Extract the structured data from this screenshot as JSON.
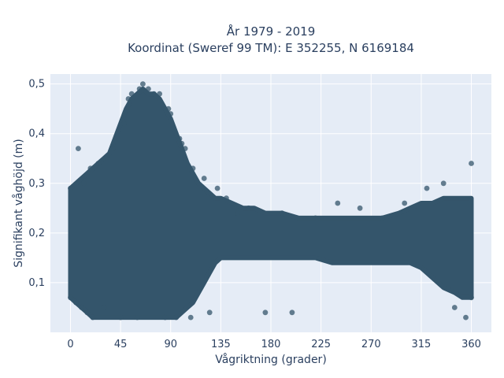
{
  "chart_data": {
    "type": "scatter",
    "title_lines": [
      "År 1979 - 2019",
      "Koordinat (Sweref 99 TM): E 352255, N 6169184"
    ],
    "xlabel": "Vågriktning (grader)",
    "ylabel": "Signifikant våghöjd (m)",
    "xlim": [
      -18,
      378
    ],
    "ylim": [
      0.0,
      0.52
    ],
    "x_ticks": [
      0,
      45,
      90,
      135,
      180,
      225,
      270,
      315,
      360
    ],
    "x_tick_labels": [
      "0",
      "45",
      "90",
      "135",
      "180",
      "225",
      "270",
      "315",
      "360"
    ],
    "y_ticks": [
      0.1,
      0.2,
      0.3,
      0.4,
      0.5
    ],
    "y_tick_labels": [
      "0,1",
      "0,2",
      "0,3",
      "0,4",
      "0,5"
    ],
    "grid": true,
    "marker_color": "#34556b",
    "plot_background": "#e5ecf6",
    "series": [
      {
        "values": [
          [
            0,
            0.07
          ],
          [
            0,
            0.29
          ],
          [
            5,
            0.06
          ],
          [
            7,
            0.37
          ],
          [
            10,
            0.05
          ],
          [
            12,
            0.3
          ],
          [
            15,
            0.04
          ],
          [
            18,
            0.33
          ],
          [
            20,
            0.03
          ],
          [
            25,
            0.34
          ],
          [
            30,
            0.05
          ],
          [
            32,
            0.35
          ],
          [
            38,
            0.37
          ],
          [
            45,
            0.03
          ],
          [
            48,
            0.42
          ],
          [
            52,
            0.47
          ],
          [
            55,
            0.48
          ],
          [
            60,
            0.03
          ],
          [
            62,
            0.49
          ],
          [
            65,
            0.5
          ],
          [
            70,
            0.49
          ],
          [
            75,
            0.48
          ],
          [
            80,
            0.48
          ],
          [
            85,
            0.03
          ],
          [
            88,
            0.45
          ],
          [
            90,
            0.44
          ],
          [
            95,
            0.03
          ],
          [
            98,
            0.39
          ],
          [
            100,
            0.38
          ],
          [
            103,
            0.37
          ],
          [
            108,
            0.03
          ],
          [
            110,
            0.33
          ],
          [
            120,
            0.31
          ],
          [
            125,
            0.04
          ],
          [
            132,
            0.29
          ],
          [
            140,
            0.27
          ],
          [
            150,
            0.24
          ],
          [
            160,
            0.25
          ],
          [
            175,
            0.04
          ],
          [
            190,
            0.24
          ],
          [
            199,
            0.04
          ],
          [
            220,
            0.23
          ],
          [
            240,
            0.26
          ],
          [
            260,
            0.25
          ],
          [
            280,
            0.23
          ],
          [
            300,
            0.26
          ],
          [
            320,
            0.29
          ],
          [
            335,
            0.3
          ],
          [
            345,
            0.05
          ],
          [
            355,
            0.03
          ],
          [
            360,
            0.34
          ],
          [
            360,
            0.07
          ]
        ]
      }
    ]
  }
}
